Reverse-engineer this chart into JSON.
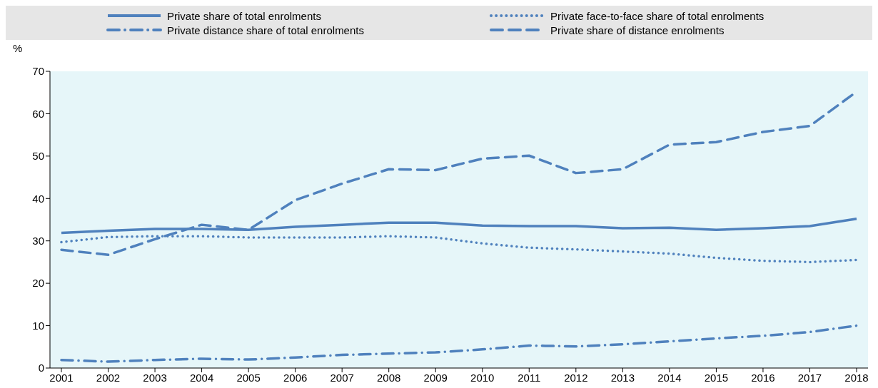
{
  "chart_data": {
    "type": "line",
    "ylabel": "%",
    "categories": [
      "2001",
      "2002",
      "2003",
      "2004",
      "2005",
      "2006",
      "2007",
      "2008",
      "2009",
      "2010",
      "2011",
      "2012",
      "2013",
      "2014",
      "2015",
      "2016",
      "2017",
      "2018"
    ],
    "ylim": [
      0,
      70
    ],
    "yticks": [
      0,
      10,
      20,
      30,
      40,
      50,
      60,
      70
    ],
    "legend": "top",
    "marker": "none",
    "series": [
      {
        "name": "Private share of total enrolments",
        "color": "#4f81bd",
        "line_style": "solid",
        "values": [
          31.9,
          32.4,
          32.8,
          32.8,
          32.6,
          33.3,
          33.8,
          34.3,
          34.3,
          33.6,
          33.5,
          33.5,
          33.0,
          33.1,
          32.6,
          33.0,
          33.5,
          35.2
        ]
      },
      {
        "name": "Private face-to-face share of total enrolments",
        "color": "#4f81bd",
        "line_style": "dotted",
        "values": [
          29.7,
          30.9,
          31.1,
          31.1,
          30.8,
          30.8,
          30.8,
          31.1,
          30.8,
          29.4,
          28.4,
          28.0,
          27.5,
          27.0,
          26.0,
          25.3,
          25.0,
          25.5
        ]
      },
      {
        "name": "Private distance share of total enrolments",
        "color": "#4f81bd",
        "line_style": "dashdot",
        "values": [
          1.9,
          1.5,
          1.9,
          2.2,
          2.0,
          2.5,
          3.1,
          3.4,
          3.7,
          4.4,
          5.3,
          5.1,
          5.6,
          6.3,
          7.0,
          7.6,
          8.5,
          10.0
        ]
      },
      {
        "name": "Private share of distance enrolments",
        "color": "#4f81bd",
        "line_style": "dashed",
        "values": [
          27.9,
          26.7,
          30.4,
          33.8,
          32.6,
          39.6,
          43.5,
          46.9,
          46.7,
          49.4,
          50.1,
          46.0,
          46.9,
          52.7,
          53.3,
          55.7,
          57.1,
          65.2
        ]
      }
    ]
  }
}
